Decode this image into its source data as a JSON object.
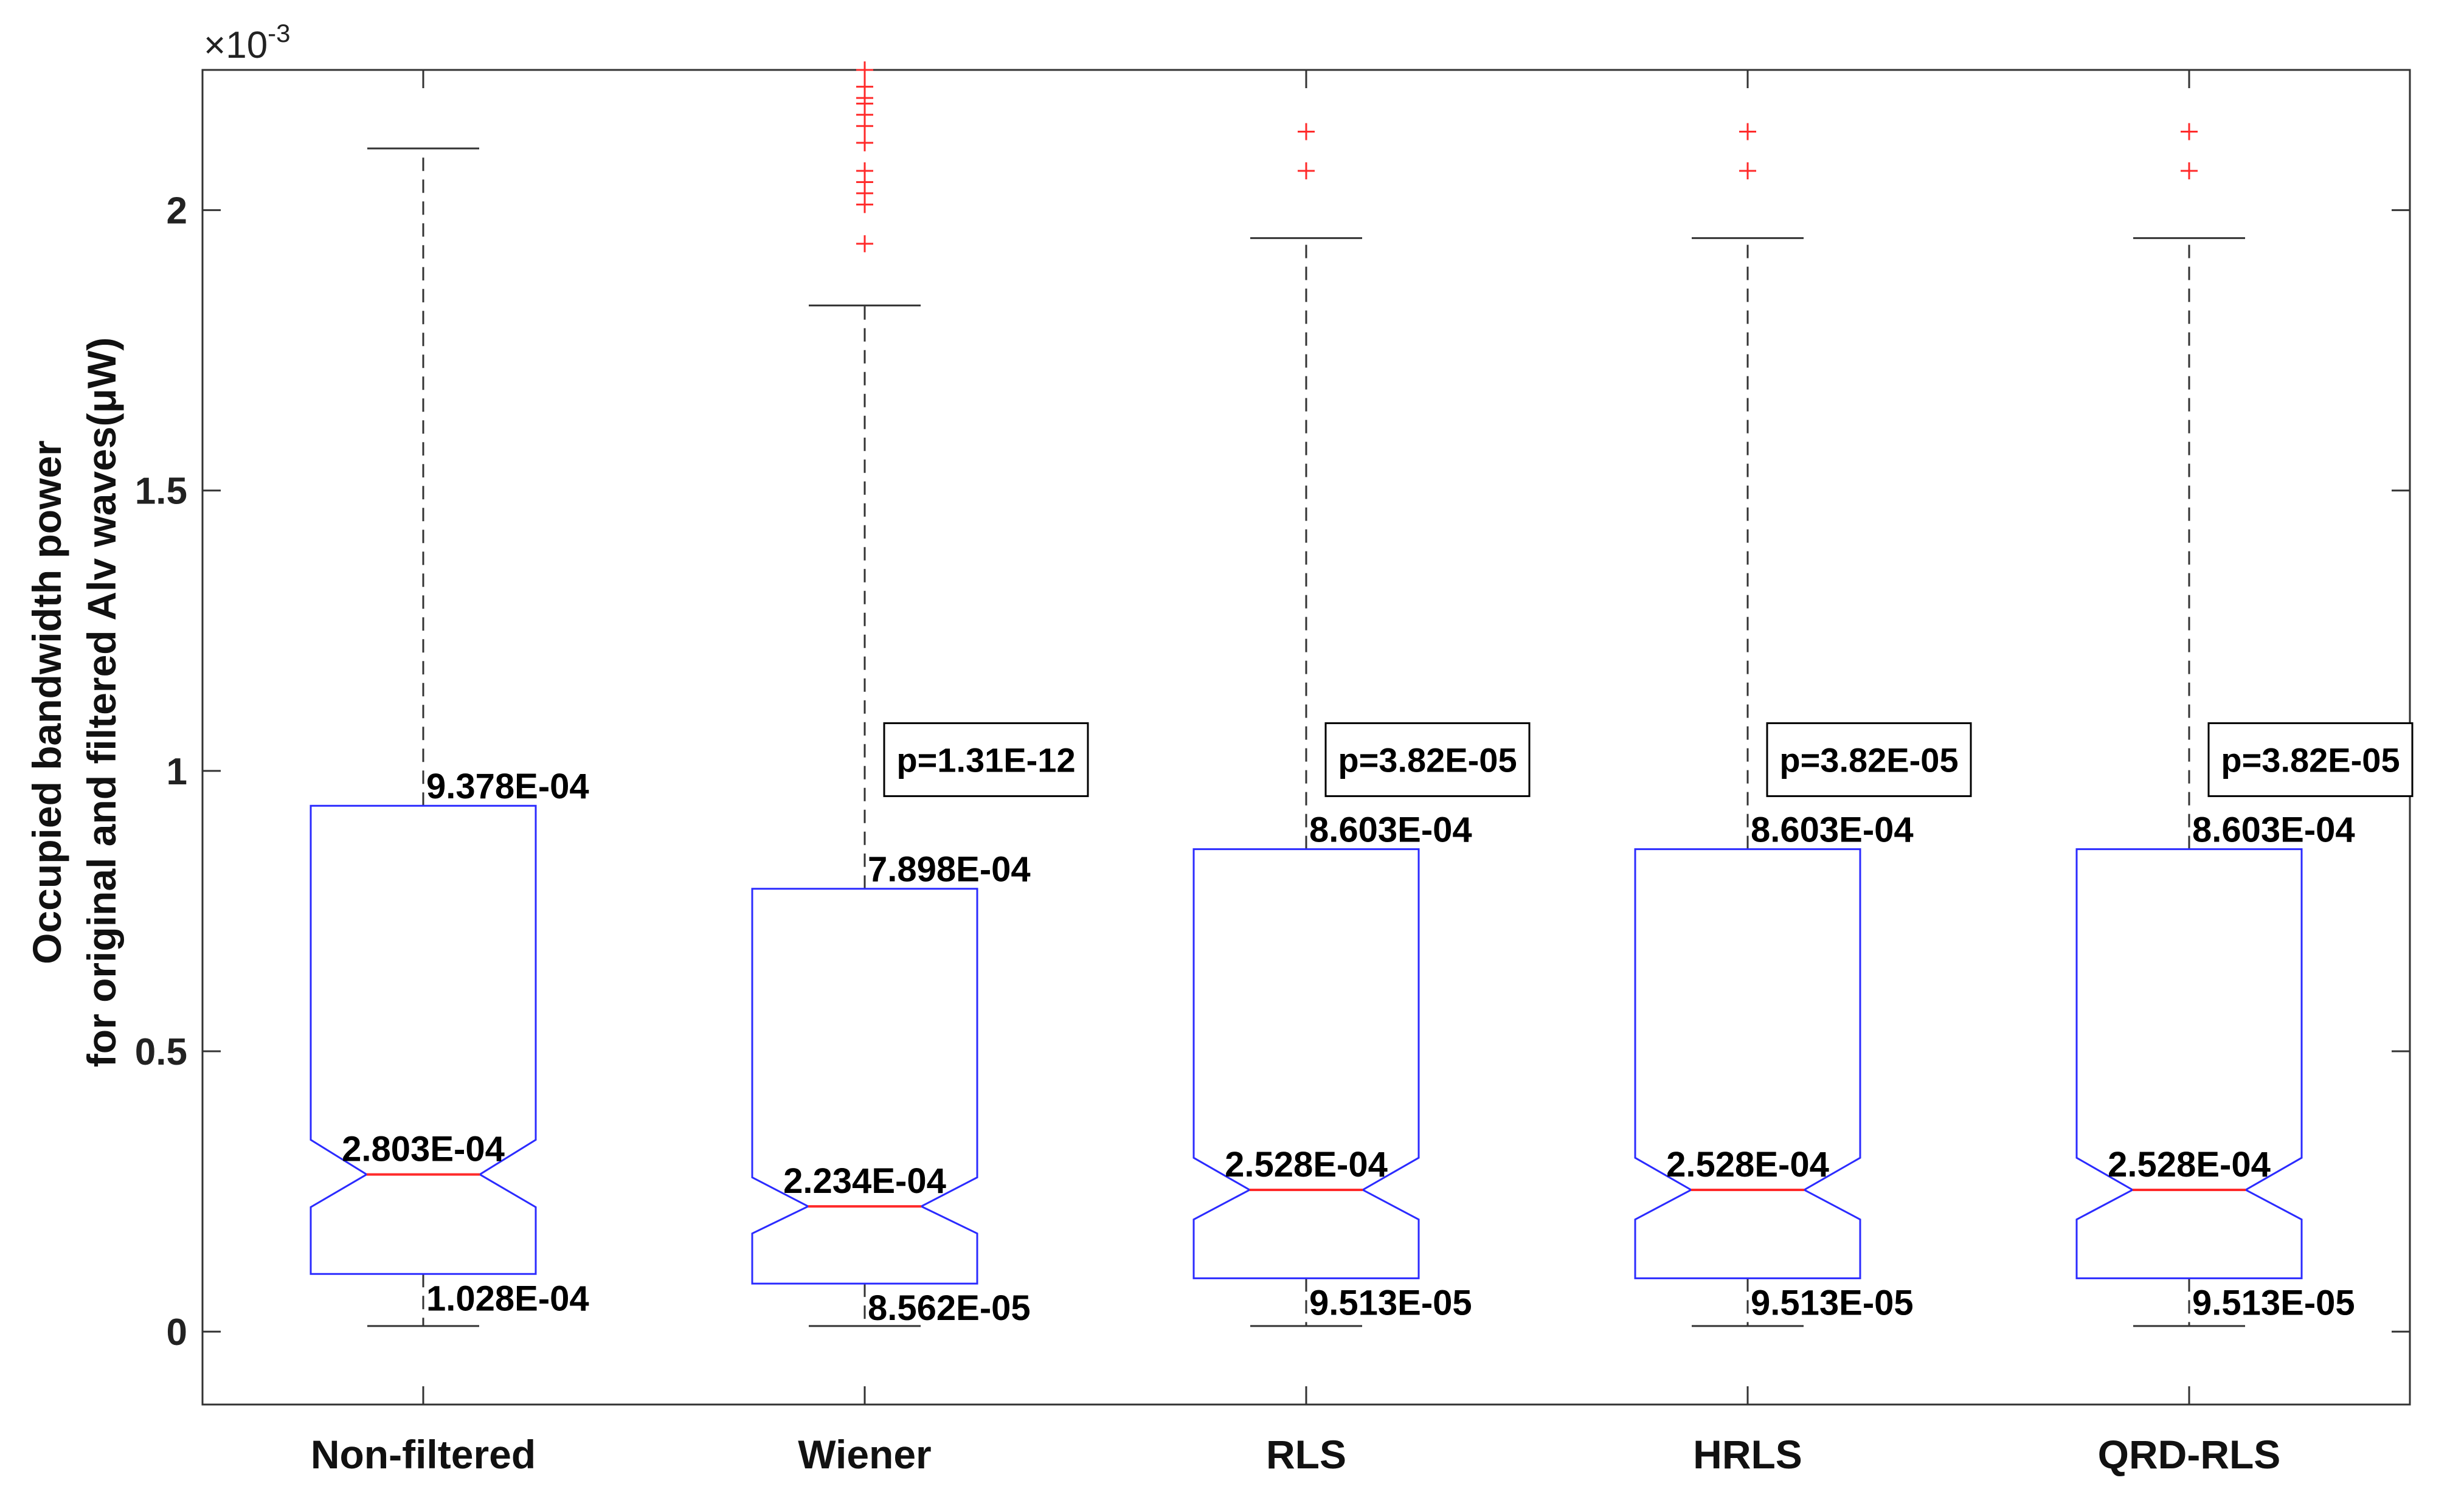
{
  "chart_data": {
    "type": "box",
    "ylabel_line1": "Occupied bandwidth power",
    "ylabel_line2": "for original and filtered Alv waves(μW)",
    "exponent_base": "×10",
    "exponent_power": "-3",
    "ylim": [
      -0.00013,
      0.00225
    ],
    "yticks": [
      0,
      0.0005,
      0.001,
      0.0015,
      0.002
    ],
    "ytick_labels": [
      "0",
      "0.5",
      "1",
      "1.5",
      "2"
    ],
    "grid": false,
    "categories": [
      "Non-filtered",
      "Wiener",
      "RLS",
      "HRLS",
      "QRD-RLS"
    ],
    "boxes": [
      {
        "q1": 0.0001028,
        "median": 0.0002803,
        "q3": 0.0009378,
        "whisker_low": 1e-05,
        "whisker_high": 0.00211,
        "notch_low": 0.000222,
        "notch_high": 0.000342,
        "q1_label": "1.028E-04",
        "median_label": "2.803E-04",
        "q3_label": "9.378E-04",
        "p_value": "",
        "outliers": []
      },
      {
        "q1": 8.562e-05,
        "median": 0.0002234,
        "q3": 0.0007898,
        "whisker_low": 1e-05,
        "whisker_high": 0.00183,
        "notch_low": 0.000175,
        "notch_high": 0.000275,
        "q1_label": "8.562E-05",
        "median_label": "2.234E-04",
        "q3_label": "7.898E-04",
        "p_value": "p=1.31E-12",
        "outliers": [
          0.00194,
          0.00201,
          0.00203,
          0.00205,
          0.00207,
          0.00212,
          0.00215,
          0.00217,
          0.00219,
          0.0022,
          0.00222,
          0.00225
        ]
      },
      {
        "q1": 9.513e-05,
        "median": 0.0002528,
        "q3": 0.0008603,
        "whisker_low": 1e-05,
        "whisker_high": 0.00195,
        "notch_low": 0.0002,
        "notch_high": 0.00031,
        "q1_label": "9.513E-05",
        "median_label": "2.528E-04",
        "q3_label": "8.603E-04",
        "p_value": "p=3.82E-05",
        "outliers": [
          0.00207,
          0.00214
        ]
      },
      {
        "q1": 9.513e-05,
        "median": 0.0002528,
        "q3": 0.0008603,
        "whisker_low": 1e-05,
        "whisker_high": 0.00195,
        "notch_low": 0.0002,
        "notch_high": 0.00031,
        "q1_label": "9.513E-05",
        "median_label": "2.528E-04",
        "q3_label": "8.603E-04",
        "p_value": "p=3.82E-05",
        "outliers": [
          0.00207,
          0.00214
        ]
      },
      {
        "q1": 9.513e-05,
        "median": 0.0002528,
        "q3": 0.0008603,
        "whisker_low": 1e-05,
        "whisker_high": 0.00195,
        "notch_low": 0.0002,
        "notch_high": 0.00031,
        "q1_label": "9.513E-05",
        "median_label": "2.528E-04",
        "q3_label": "8.603E-04",
        "p_value": "p=3.82E-05",
        "outliers": [
          0.00207,
          0.00214
        ]
      }
    ],
    "colors": {
      "box": "#2b2bff",
      "median": "#ff2a2a",
      "whisker": "#333333",
      "outlier": "#ff2a2a",
      "axis": "#333333"
    }
  }
}
